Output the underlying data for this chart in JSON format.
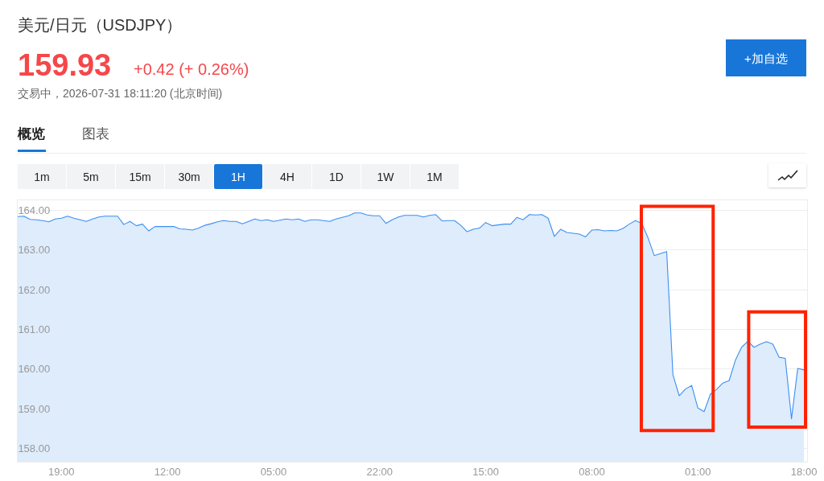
{
  "chart_data": {
    "type": "area",
    "title": "美元/日元（USDJPY）",
    "annotations": [
      "159.93",
      "+0.42 (+ 0.26%)",
      "交易中，2026-07-31 18:11:20 (北京时间)",
      "概览",
      "图表",
      "1m",
      "5m",
      "15m",
      "30m",
      "1H",
      "4H",
      "1D",
      "1W",
      "1M",
      "+加自选"
    ],
    "categories": [
      null,
      null,
      null,
      null,
      null,
      null,
      null,
      "19:00",
      null,
      null,
      null,
      null,
      null,
      null,
      null,
      null,
      null,
      null,
      null,
      null,
      null,
      null,
      null,
      null,
      "12:00",
      null,
      null,
      null,
      null,
      null,
      null,
      null,
      null,
      null,
      null,
      null,
      null,
      null,
      null,
      null,
      null,
      "05:00",
      null,
      null,
      null,
      null,
      null,
      null,
      null,
      null,
      null,
      null,
      null,
      null,
      null,
      null,
      null,
      null,
      "22:00",
      null,
      null,
      null,
      null,
      null,
      null,
      null,
      null,
      null,
      null,
      null,
      null,
      null,
      null,
      null,
      null,
      "15:00",
      null,
      null,
      null,
      null,
      null,
      null,
      null,
      null,
      null,
      null,
      null,
      null,
      null,
      null,
      null,
      null,
      "08:00",
      null,
      null,
      null,
      null,
      null,
      null,
      null,
      null,
      null,
      null,
      null,
      null,
      null,
      null,
      null,
      null,
      "01:00",
      null,
      null,
      null,
      null,
      null,
      null,
      null,
      null,
      null,
      null,
      null,
      null,
      null,
      null,
      null,
      null,
      "18:00"
    ],
    "series": [
      {
        "color": "#3d8ff0",
        "values": [
          163.84,
          163.85,
          163.77,
          163.76,
          163.74,
          163.71,
          163.78,
          163.8,
          163.85,
          163.8,
          163.76,
          163.72,
          163.78,
          163.83,
          163.85,
          163.85,
          163.85,
          163.64,
          163.72,
          163.61,
          163.65,
          163.48,
          163.59,
          163.59,
          163.59,
          163.59,
          163.53,
          163.52,
          163.5,
          163.55,
          163.62,
          163.66,
          163.71,
          163.74,
          163.72,
          163.72,
          163.66,
          163.72,
          163.78,
          163.74,
          163.76,
          163.72,
          163.75,
          163.78,
          163.76,
          163.78,
          163.72,
          163.76,
          163.76,
          163.74,
          163.72,
          163.78,
          163.82,
          163.86,
          163.93,
          163.93,
          163.88,
          163.86,
          163.86,
          163.67,
          163.76,
          163.83,
          163.87,
          163.87,
          163.87,
          163.83,
          163.87,
          163.89,
          163.73,
          163.74,
          163.74,
          163.62,
          163.46,
          163.52,
          163.55,
          163.69,
          163.61,
          163.63,
          163.65,
          163.65,
          163.82,
          163.76,
          163.89,
          163.88,
          163.89,
          163.8,
          163.34,
          163.52,
          163.44,
          163.42,
          163.4,
          163.33,
          163.5,
          163.51,
          163.48,
          163.49,
          163.48,
          163.54,
          163.65,
          163.74,
          163.67,
          163.31,
          162.86,
          162.91,
          162.96,
          159.86,
          159.33,
          159.5,
          159.59,
          159.02,
          158.93,
          159.37,
          159.49,
          159.65,
          159.71,
          160.22,
          160.55,
          160.7,
          160.55,
          160.63,
          160.69,
          160.63,
          160.3,
          160.27,
          158.75,
          160.02,
          159.98
        ]
      }
    ],
    "ylim": [
      157.67,
      164.25
    ],
    "yticks": [
      {
        "value": 158,
        "label": "158.00"
      },
      {
        "value": 159,
        "label": "159.00"
      },
      {
        "value": 160,
        "label": "160.00"
      },
      {
        "value": 161,
        "label": "161.00"
      },
      {
        "value": 162,
        "label": "162.00"
      },
      {
        "value": 163,
        "label": "163.00"
      },
      {
        "value": 164,
        "label": "164.00"
      }
    ],
    "grid": "y"
  }
}
